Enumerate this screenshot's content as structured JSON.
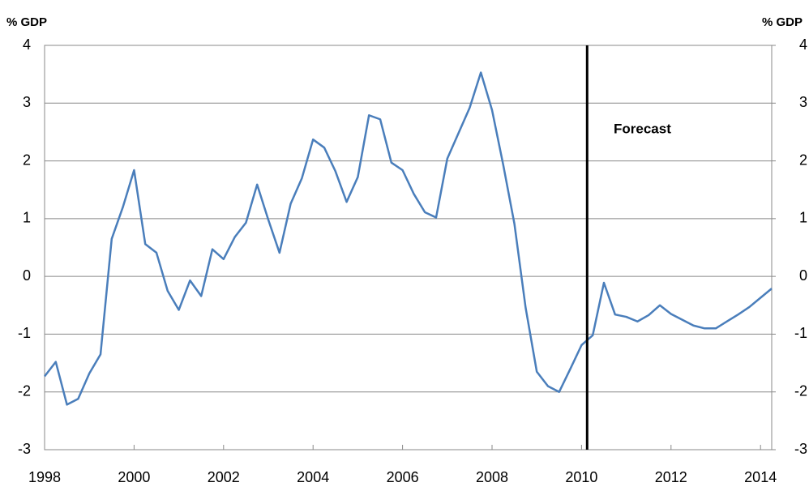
{
  "chart_data": {
    "type": "line",
    "y_label": "% GDP",
    "y2_label": "% GDP",
    "annotation": {
      "text": "Forecast",
      "x": 2010.125
    },
    "x": [
      1998,
      1998.25,
      1998.5,
      1998.75,
      1999,
      1999.25,
      1999.5,
      1999.75,
      2000,
      2000.25,
      2000.5,
      2000.75,
      2001,
      2001.25,
      2001.5,
      2001.75,
      2002,
      2002.25,
      2002.5,
      2002.75,
      2003,
      2003.25,
      2003.5,
      2003.75,
      2004,
      2004.25,
      2004.5,
      2004.75,
      2005,
      2005.25,
      2005.5,
      2005.75,
      2006,
      2006.25,
      2006.5,
      2006.75,
      2007,
      2007.25,
      2007.5,
      2007.75,
      2008,
      2008.25,
      2008.5,
      2008.75,
      2009,
      2009.25,
      2009.5,
      2009.75,
      2010,
      2010.25,
      2010.5,
      2010.75,
      2011,
      2011.25,
      2011.5,
      2011.75,
      2012,
      2012.25,
      2012.5,
      2012.75,
      2013,
      2013.25,
      2013.5,
      2013.75,
      2014,
      2014.25
    ],
    "series": [
      {
        "color": "#4a7ebb",
        "values": [
          -1.73,
          -1.48,
          -2.22,
          -2.12,
          -1.68,
          -1.35,
          0.65,
          1.2,
          1.84,
          0.56,
          0.41,
          -0.25,
          -0.58,
          -0.07,
          -0.34,
          0.47,
          0.3,
          0.68,
          0.93,
          1.59,
          0.98,
          0.41,
          1.26,
          1.7,
          2.37,
          2.23,
          1.82,
          1.29,
          1.72,
          2.79,
          2.72,
          1.97,
          1.84,
          1.43,
          1.11,
          1.02,
          2.04,
          2.48,
          2.92,
          3.53,
          2.88,
          1.93,
          0.91,
          -0.54,
          -1.65,
          -1.9,
          -2.0,
          -1.6,
          -1.19,
          -1.02,
          -0.11,
          -0.66,
          -0.7,
          -0.78,
          -0.67,
          -0.5,
          -0.65,
          -0.75,
          -0.85,
          -0.9,
          -0.9,
          -0.78,
          -0.66,
          -0.53,
          -0.37,
          -0.21
        ]
      }
    ],
    "xlim": [
      1998,
      2014.25
    ],
    "xticks": [
      1998,
      2000,
      2002,
      2004,
      2006,
      2008,
      2010,
      2012,
      2014
    ],
    "ylim": [
      -3,
      4
    ],
    "yticks": [
      -3,
      -2,
      -1,
      0,
      1,
      2,
      3,
      4
    ],
    "y2lim": [
      -3,
      4
    ],
    "y2ticks": [
      -3,
      -2,
      -1,
      0,
      1,
      2,
      3,
      4
    ],
    "grid": true
  }
}
